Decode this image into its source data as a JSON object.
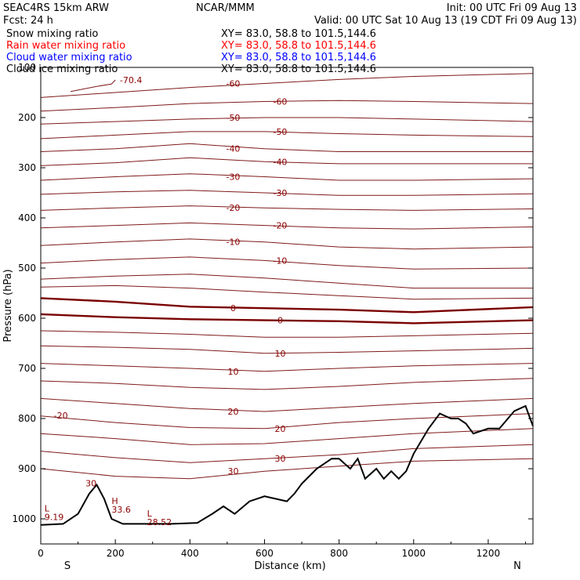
{
  "header": {
    "model": "SEAC4RS 15km ARW",
    "org": "NCAR/MMM",
    "init": "Init: 00 UTC Fri 09 Aug 13",
    "fcst": "Fcst:   24 h",
    "valid": "Valid: 00 UTC Sat 10 Aug 13 (19 CDT Fri 09 Aug 13)"
  },
  "legend": [
    {
      "label": "Snow mixing ratio",
      "xy": "XY=  83.0, 58.8 to 101.5,144.6",
      "color": "#000000"
    },
    {
      "label": "Rain water mixing ratio",
      "xy": "XY=  83.0, 58.8 to 101.5,144.6",
      "color": "#ff0000"
    },
    {
      "label": "Cloud water mixing ratio",
      "xy": "XY=  83.0, 58.8 to 101.5,144.6",
      "color": "#0000ff"
    },
    {
      "label": "Cloud ice mixing ratio",
      "xy": "XY=  83.0, 58.8 to 101.5,144.6",
      "color": "#000000"
    }
  ],
  "colors": {
    "contour": "#7f1a1a",
    "freezing": "#7a0000",
    "terrain": "#000000",
    "label": "#8b0000"
  },
  "chart_data": {
    "type": "line",
    "title": "",
    "xlabel": "Distance (km)",
    "ylabel": "Pressure (hPa)",
    "xlim": [
      0,
      1320
    ],
    "ylim": [
      1050,
      100
    ],
    "xticks": [
      0,
      200,
      400,
      600,
      800,
      1000,
      1200
    ],
    "yticks": [
      100,
      200,
      300,
      400,
      500,
      600,
      700,
      800,
      900,
      1000
    ],
    "xtick_labels": [
      "0",
      "200",
      "400",
      "600",
      "800",
      "1000",
      "1200"
    ],
    "ytick_labels": [
      "100",
      "200",
      "300",
      "400",
      "500",
      "600",
      "700",
      "800",
      "900",
      "1000"
    ],
    "x_end_labels": {
      "left": "S",
      "right": "N"
    },
    "series": [
      {
        "label": "-70.4",
        "x": [
          80,
          150,
          190,
          200
        ],
        "y": [
          148,
          138,
          133,
          125
        ]
      },
      {
        "label": "-60",
        "x": [
          0,
          200,
          400,
          600,
          800,
          1000,
          1320
        ],
        "y": [
          160,
          150,
          140,
          132,
          124,
          118,
          112
        ]
      },
      {
        "label": "-60",
        "x": [
          0,
          200,
          400,
          600,
          800,
          1000,
          1320
        ],
        "y": [
          187,
          180,
          172,
          168,
          166,
          168,
          172
        ]
      },
      {
        "label": "-50",
        "x": [
          0,
          200,
          400,
          600,
          800,
          1000,
          1320
        ],
        "y": [
          213,
          208,
          203,
          200,
          200,
          203,
          208
        ]
      },
      {
        "label": "-50",
        "x": [
          0,
          200,
          400,
          600,
          800,
          1000,
          1320
        ],
        "y": [
          242,
          235,
          228,
          228,
          232,
          235,
          238
        ]
      },
      {
        "label": "-40",
        "x": [
          0,
          200,
          400,
          600,
          800,
          1000,
          1320
        ],
        "y": [
          268,
          262,
          252,
          262,
          268,
          268,
          268
        ]
      },
      {
        "label": "-40",
        "x": [
          0,
          200,
          400,
          600,
          800,
          1000,
          1320
        ],
        "y": [
          296,
          290,
          280,
          288,
          292,
          292,
          292
        ]
      },
      {
        "label": "-30",
        "x": [
          0,
          200,
          400,
          600,
          800,
          1000,
          1320
        ],
        "y": [
          325,
          318,
          312,
          318,
          325,
          325,
          322
        ]
      },
      {
        "label": "-30",
        "x": [
          0,
          200,
          400,
          600,
          800,
          1000,
          1320
        ],
        "y": [
          353,
          348,
          345,
          350,
          355,
          355,
          352
        ]
      },
      {
        "label": "-20",
        "x": [
          0,
          200,
          400,
          600,
          800,
          1000,
          1320
        ],
        "y": [
          385,
          380,
          376,
          380,
          383,
          385,
          382
        ]
      },
      {
        "label": "-20",
        "x": [
          0,
          200,
          400,
          600,
          800,
          1000,
          1320
        ],
        "y": [
          420,
          415,
          410,
          415,
          420,
          422,
          418
        ]
      },
      {
        "label": "-10",
        "x": [
          0,
          200,
          400,
          600,
          800,
          1000,
          1320
        ],
        "y": [
          455,
          448,
          442,
          448,
          458,
          462,
          458
        ]
      },
      {
        "label": "-10",
        "x": [
          0,
          200,
          400,
          600,
          800,
          1000,
          1320
        ],
        "y": [
          490,
          483,
          478,
          485,
          495,
          502,
          500
        ]
      },
      {
        "label": "",
        "x": [
          0,
          200,
          400,
          600,
          800,
          1000,
          1320
        ],
        "y": [
          522,
          516,
          512,
          520,
          530,
          540,
          540
        ]
      },
      {
        "label": "",
        "x": [
          0,
          200,
          400,
          600,
          800,
          1000,
          1320
        ],
        "y": [
          538,
          535,
          540,
          548,
          555,
          562,
          560
        ]
      },
      {
        "label": "0",
        "x": [
          0,
          200,
          400,
          600,
          800,
          1000,
          1320
        ],
        "y": [
          560,
          567,
          577,
          580,
          583,
          588,
          578
        ]
      },
      {
        "label": "0",
        "x": [
          0,
          200,
          400,
          600,
          800,
          1000,
          1320
        ],
        "y": [
          592,
          598,
          602,
          604,
          606,
          610,
          604
        ]
      },
      {
        "label": "",
        "x": [
          0,
          200,
          400,
          600,
          800,
          1000,
          1320
        ],
        "y": [
          625,
          628,
          632,
          638,
          638,
          635,
          630
        ]
      },
      {
        "label": "10",
        "x": [
          0,
          200,
          400,
          600,
          800,
          1000,
          1320
        ],
        "y": [
          655,
          658,
          662,
          670,
          668,
          665,
          660
        ]
      },
      {
        "label": "10",
        "x": [
          0,
          200,
          400,
          600,
          800,
          1000,
          1320
        ],
        "y": [
          690,
          695,
          700,
          706,
          700,
          695,
          690
        ]
      },
      {
        "label": "",
        "x": [
          0,
          200,
          400,
          600,
          800,
          1000,
          1320
        ],
        "y": [
          725,
          730,
          738,
          742,
          736,
          728,
          720
        ]
      },
      {
        "label": "20",
        "x": [
          0,
          200,
          400,
          600,
          800,
          1000,
          1320
        ],
        "y": [
          760,
          770,
          780,
          786,
          778,
          770,
          760
        ]
      },
      {
        "label": "20",
        "x": [
          0,
          200,
          400,
          600,
          800,
          1000,
          1320
        ],
        "y": [
          795,
          808,
          818,
          820,
          808,
          800,
          790
        ]
      },
      {
        "label": "",
        "x": [
          0,
          200,
          400,
          600,
          800,
          1000,
          1320
        ],
        "y": [
          830,
          840,
          852,
          850,
          840,
          830,
          820
        ]
      },
      {
        "label": "30",
        "x": [
          0,
          200,
          400,
          600,
          800,
          1000,
          1320
        ],
        "y": [
          865,
          878,
          888,
          880,
          872,
          860,
          852
        ]
      },
      {
        "label": "30",
        "x": [
          0,
          200,
          400,
          600,
          800,
          1000,
          1320
        ],
        "y": [
          900,
          915,
          920,
          905,
          895,
          885,
          880
        ]
      }
    ],
    "terrain": {
      "x": [
        0,
        60,
        100,
        130,
        150,
        170,
        190,
        220,
        280,
        350,
        420,
        460,
        490,
        520,
        560,
        600,
        630,
        660,
        680,
        700,
        740,
        780,
        800,
        830,
        850,
        870,
        900,
        920,
        940,
        960,
        980,
        1000,
        1040,
        1070,
        1100,
        1120,
        1140,
        1160,
        1200,
        1230,
        1270,
        1300,
        1320
      ],
      "y": [
        1012,
        1010,
        990,
        950,
        932,
        960,
        1000,
        1010,
        1010,
        1010,
        1008,
        990,
        975,
        990,
        965,
        955,
        960,
        965,
        950,
        930,
        900,
        880,
        880,
        900,
        880,
        920,
        900,
        920,
        905,
        920,
        905,
        870,
        820,
        790,
        800,
        800,
        810,
        830,
        820,
        820,
        785,
        775,
        815
      ]
    },
    "markers": [
      {
        "label": "L",
        "value": "9.19",
        "x": 10,
        "y": 985
      },
      {
        "label": "H",
        "value": "33.6",
        "x": 190,
        "y": 970
      },
      {
        "label": "L",
        "value": "28.52",
        "x": 285,
        "y": 995
      },
      {
        "label": "30",
        "value": "",
        "x": 120,
        "y": 935
      },
      {
        "label": "-20",
        "value": "",
        "x": 35,
        "y": 800
      }
    ],
    "grid": false
  }
}
